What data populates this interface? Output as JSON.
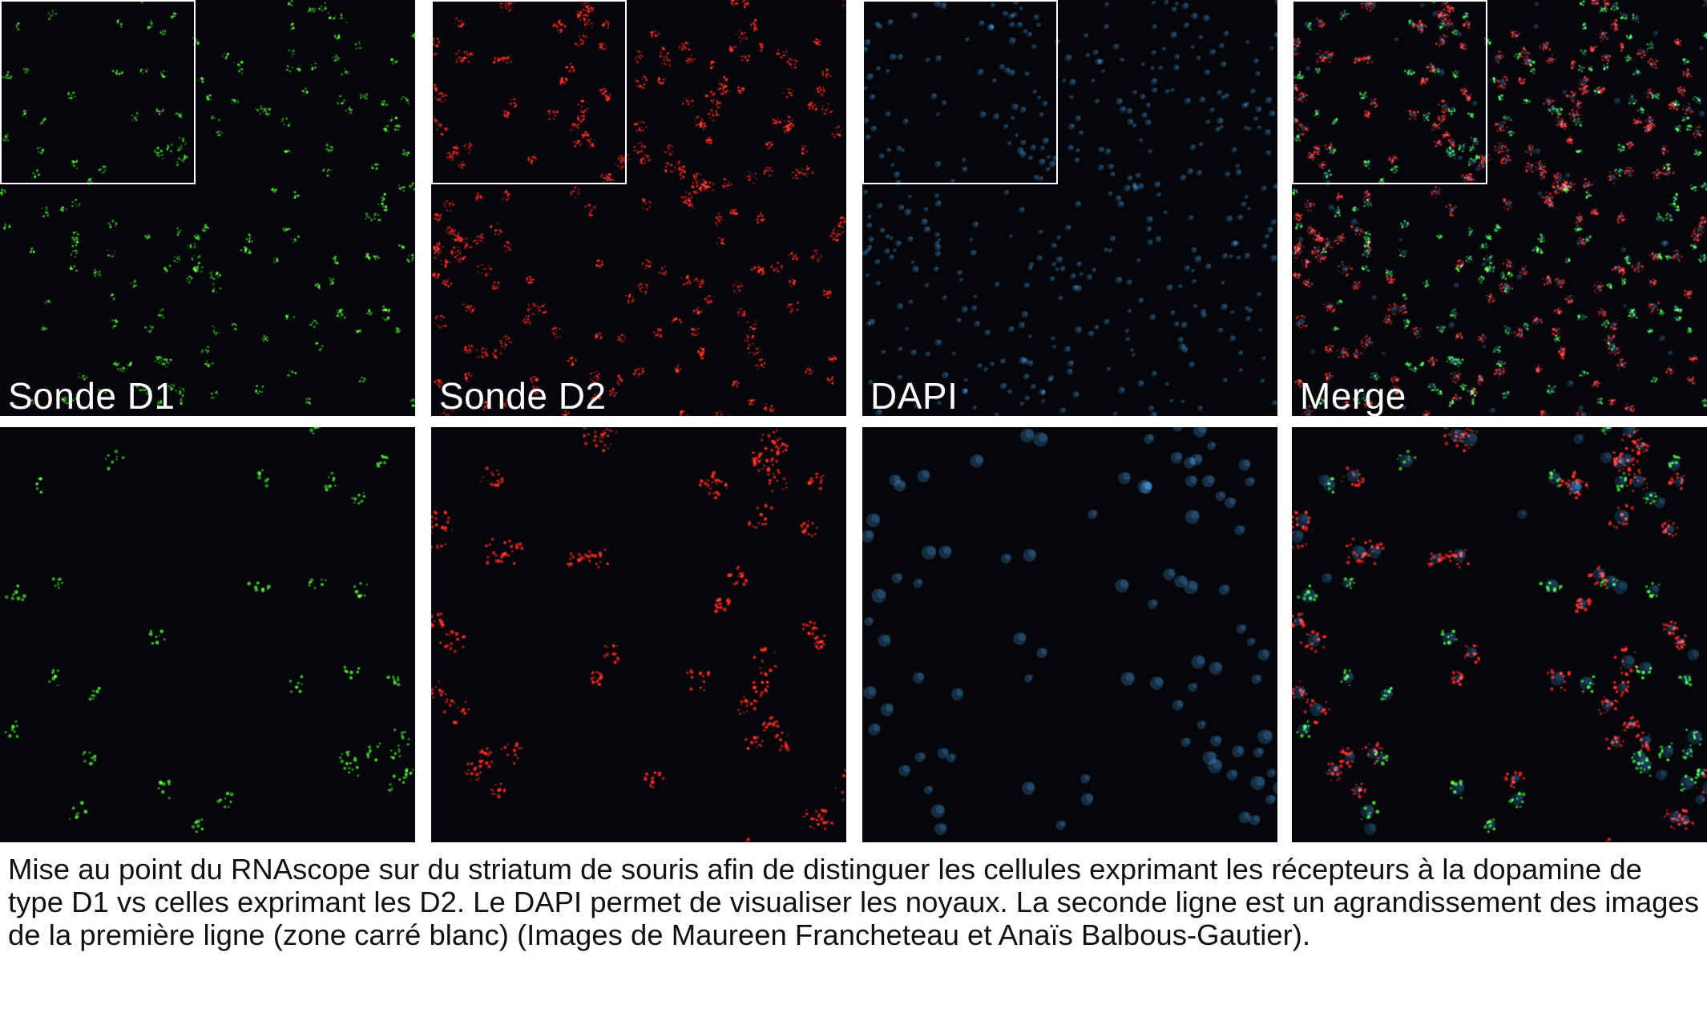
{
  "figure": {
    "top_row": [
      {
        "channel": "d1",
        "label": "Sonde D1",
        "color": "#38e02a"
      },
      {
        "channel": "d2",
        "label": "Sonde D2",
        "color": "#ff2a1f"
      },
      {
        "channel": "dapi",
        "label": "DAPI",
        "color": "#3a8fc8"
      },
      {
        "channel": "merge",
        "label": "Merge",
        "color": "#ffffff"
      }
    ],
    "bottom_row": [
      {
        "channel": "d1",
        "color": "#38e02a"
      },
      {
        "channel": "d2",
        "color": "#ff2a1f"
      },
      {
        "channel": "dapi",
        "color": "#3a8fc8"
      },
      {
        "channel": "merge",
        "color": "#ffffff"
      }
    ],
    "inset_box_color": "#ffffff",
    "background_color": "#05060a"
  },
  "caption": "Mise au point du RNAscope sur du striatum de souris afin de distinguer les cellules exprimant les récepteurs à la dopamine de type D1 vs celles exprimant les D2. Le DAPI permet de visualiser les noyaux. La seconde ligne est un agrandissement des images de la première ligne (zone carré blanc) (Images de Maureen Francheteau et Anaïs Balbous-Gautier)."
}
